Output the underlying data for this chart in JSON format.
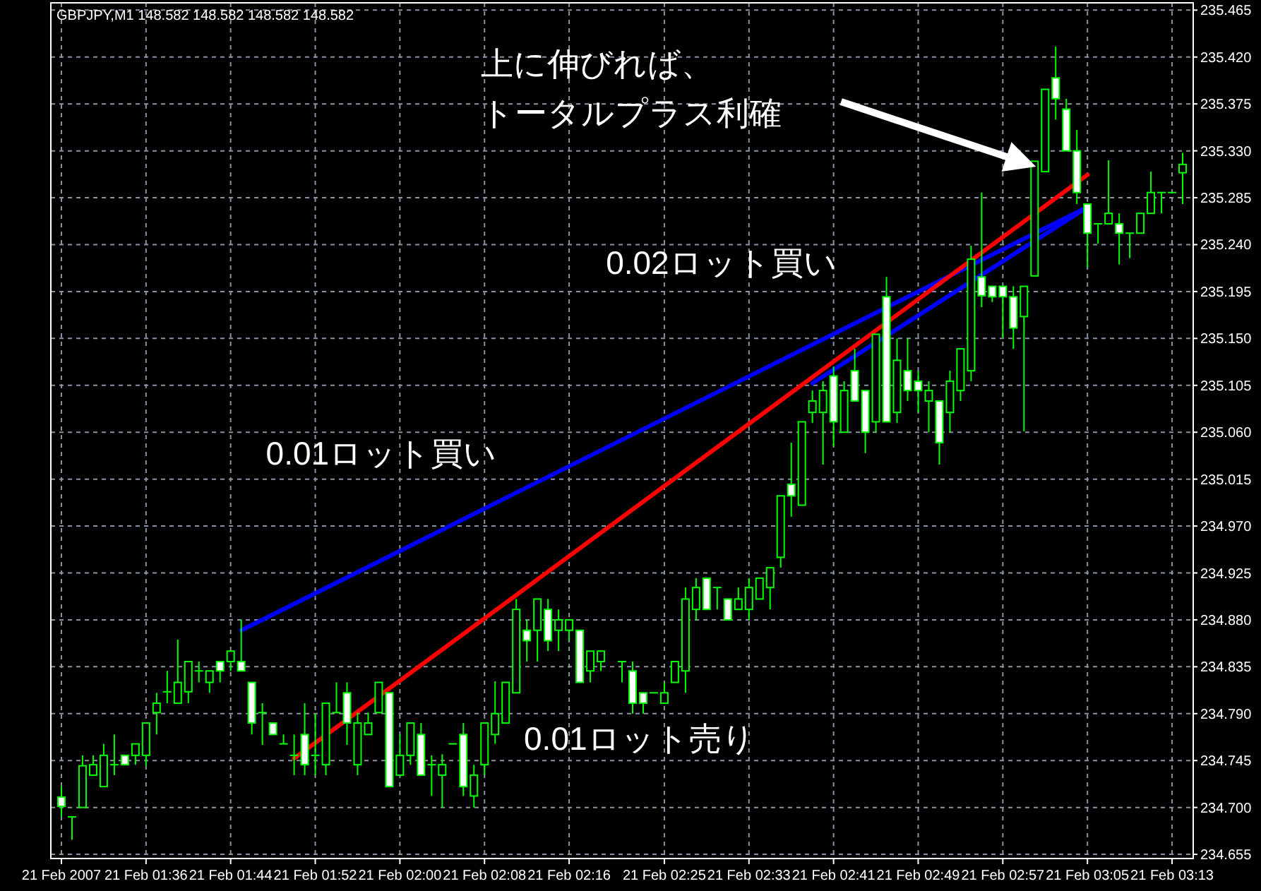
{
  "chart_data": {
    "type": "candlestick",
    "title": "GBPJPY,M1  148.582 148.582 148.582 148.582",
    "x": [
      "2007-02-21T01:28",
      "2007-02-21T01:29",
      "2007-02-21T01:30",
      "2007-02-21T01:31",
      "2007-02-21T01:32",
      "2007-02-21T01:33",
      "2007-02-21T01:34",
      "2007-02-21T01:35",
      "2007-02-21T01:36",
      "2007-02-21T01:37",
      "2007-02-21T01:38",
      "2007-02-21T01:39",
      "2007-02-21T01:40",
      "2007-02-21T01:41",
      "2007-02-21T01:42",
      "2007-02-21T01:43",
      "2007-02-21T01:44",
      "2007-02-21T01:45",
      "2007-02-21T01:46",
      "2007-02-21T01:47",
      "2007-02-21T01:48",
      "2007-02-21T01:49",
      "2007-02-21T01:50",
      "2007-02-21T01:51",
      "2007-02-21T01:52",
      "2007-02-21T01:53",
      "2007-02-21T01:54",
      "2007-02-21T01:55",
      "2007-02-21T01:56",
      "2007-02-21T01:57",
      "2007-02-21T01:58",
      "2007-02-21T01:59",
      "2007-02-21T02:00",
      "2007-02-21T02:01",
      "2007-02-21T02:02",
      "2007-02-21T02:03",
      "2007-02-21T02:04",
      "2007-02-21T02:05",
      "2007-02-21T02:06",
      "2007-02-21T02:07",
      "2007-02-21T02:08",
      "2007-02-21T02:09",
      "2007-02-21T02:10",
      "2007-02-21T02:11",
      "2007-02-21T02:12",
      "2007-02-21T02:13",
      "2007-02-21T02:14",
      "2007-02-21T02:15",
      "2007-02-21T02:16",
      "2007-02-21T02:17",
      "2007-02-21T02:18",
      "2007-02-21T02:19",
      "2007-02-21T02:21",
      "2007-02-21T02:22",
      "2007-02-21T02:23",
      "2007-02-21T02:24",
      "2007-02-21T02:25",
      "2007-02-21T02:26",
      "2007-02-21T02:27",
      "2007-02-21T02:28",
      "2007-02-21T02:29",
      "2007-02-21T02:30",
      "2007-02-21T02:31",
      "2007-02-21T02:32",
      "2007-02-21T02:33",
      "2007-02-21T02:34",
      "2007-02-21T02:35",
      "2007-02-21T02:36",
      "2007-02-21T02:37",
      "2007-02-21T02:38",
      "2007-02-21T02:39",
      "2007-02-21T02:40",
      "2007-02-21T02:41",
      "2007-02-21T02:42",
      "2007-02-21T02:43",
      "2007-02-21T02:44",
      "2007-02-21T02:45",
      "2007-02-21T02:46",
      "2007-02-21T02:47",
      "2007-02-21T02:48",
      "2007-02-21T02:49",
      "2007-02-21T02:50",
      "2007-02-21T02:51",
      "2007-02-21T02:52",
      "2007-02-21T02:53",
      "2007-02-21T02:54",
      "2007-02-21T02:55",
      "2007-02-21T02:56",
      "2007-02-21T02:57",
      "2007-02-21T02:58",
      "2007-02-21T02:59",
      "2007-02-21T03:00",
      "2007-02-21T03:01",
      "2007-02-21T03:02",
      "2007-02-21T03:03",
      "2007-02-21T03:04",
      "2007-02-21T03:05",
      "2007-02-21T03:06",
      "2007-02-21T03:07",
      "2007-02-21T03:08",
      "2007-02-21T03:09",
      "2007-02-21T03:10",
      "2007-02-21T03:11",
      "2007-02-21T03:12",
      "2007-02-21T03:13",
      "2007-02-21T03:14"
    ],
    "ohlc": [
      [
        234.71,
        234.72,
        234.691,
        234.701
      ],
      [
        234.691,
        234.691,
        234.669,
        234.691
      ],
      [
        234.7,
        234.75,
        234.7,
        234.74
      ],
      [
        234.731,
        234.75,
        234.731,
        234.741
      ],
      [
        234.72,
        234.761,
        234.72,
        234.75
      ],
      [
        234.741,
        234.77,
        234.731,
        234.741
      ],
      [
        234.75,
        234.75,
        234.741,
        234.741
      ],
      [
        234.75,
        234.761,
        234.741,
        234.761
      ],
      [
        234.75,
        234.781,
        234.74,
        234.781
      ],
      [
        234.791,
        234.81,
        234.77,
        234.8
      ],
      [
        234.811,
        234.831,
        234.8,
        234.811
      ],
      [
        234.8,
        234.861,
        234.8,
        234.82
      ],
      [
        234.811,
        234.84,
        234.8,
        234.84
      ],
      [
        234.831,
        234.84,
        234.82,
        234.831
      ],
      [
        234.82,
        234.831,
        234.81,
        234.831
      ],
      [
        234.84,
        234.84,
        234.82,
        234.831
      ],
      [
        234.84,
        234.85,
        234.831,
        234.85
      ],
      [
        234.84,
        234.88,
        234.831,
        234.831
      ],
      [
        234.82,
        234.82,
        234.77,
        234.781
      ],
      [
        234.791,
        234.8,
        234.76,
        234.791
      ],
      [
        234.781,
        234.781,
        234.77,
        234.77
      ],
      [
        234.761,
        234.77,
        234.761,
        234.761
      ],
      [
        234.75,
        234.77,
        234.731,
        234.75
      ],
      [
        234.77,
        234.8,
        234.731,
        234.741
      ],
      [
        234.75,
        234.79,
        234.731,
        234.75
      ],
      [
        234.741,
        234.8,
        234.731,
        234.8
      ],
      [
        234.791,
        234.82,
        234.791,
        234.791
      ],
      [
        234.81,
        234.82,
        234.76,
        234.781
      ],
      [
        234.741,
        234.791,
        234.731,
        234.781
      ],
      [
        234.77,
        234.791,
        234.77,
        234.781
      ],
      [
        234.791,
        234.82,
        234.791,
        234.82
      ],
      [
        234.81,
        234.81,
        234.72,
        234.72
      ],
      [
        234.731,
        234.77,
        234.731,
        234.75
      ],
      [
        234.75,
        234.781,
        234.741,
        234.781
      ],
      [
        234.77,
        234.781,
        234.731,
        234.731
      ],
      [
        234.741,
        234.75,
        234.711,
        234.741
      ],
      [
        234.731,
        234.751,
        234.7,
        234.741
      ],
      [
        234.761,
        234.761,
        234.761,
        234.761
      ],
      [
        234.77,
        234.781,
        234.711,
        234.72
      ],
      [
        234.711,
        234.741,
        234.7,
        234.731
      ],
      [
        234.741,
        234.781,
        234.731,
        234.781
      ],
      [
        234.77,
        234.821,
        234.761,
        234.79
      ],
      [
        234.781,
        234.82,
        234.781,
        234.82
      ],
      [
        234.81,
        234.9,
        234.81,
        234.89
      ],
      [
        234.87,
        234.88,
        234.84,
        234.86
      ],
      [
        234.87,
        234.9,
        234.84,
        234.9
      ],
      [
        234.89,
        234.9,
        234.85,
        234.86
      ],
      [
        234.87,
        234.89,
        234.85,
        234.88
      ],
      [
        234.87,
        234.88,
        234.86,
        234.88
      ],
      [
        234.87,
        234.87,
        234.82,
        234.82
      ],
      [
        234.831,
        234.85,
        234.82,
        234.85
      ],
      [
        234.84,
        234.85,
        234.831,
        234.85
      ],
      [
        234.84,
        234.84,
        234.82,
        234.84
      ],
      [
        234.831,
        234.84,
        234.79,
        234.8
      ],
      [
        234.81,
        234.81,
        234.79,
        234.8
      ],
      [
        234.81,
        234.81,
        234.81,
        234.81
      ],
      [
        234.8,
        234.82,
        234.8,
        234.81
      ],
      [
        234.82,
        234.84,
        234.82,
        234.84
      ],
      [
        234.831,
        234.911,
        234.81,
        234.9
      ],
      [
        234.89,
        234.92,
        234.88,
        234.911
      ],
      [
        234.92,
        234.92,
        234.89,
        234.89
      ],
      [
        234.911,
        234.911,
        234.89,
        234.911
      ],
      [
        234.9,
        234.9,
        234.88,
        234.88
      ],
      [
        234.89,
        234.911,
        234.89,
        234.9
      ],
      [
        234.89,
        234.92,
        234.88,
        234.911
      ],
      [
        234.9,
        234.92,
        234.9,
        234.92
      ],
      [
        234.911,
        234.93,
        234.89,
        234.93
      ],
      [
        234.94,
        234.999,
        234.93,
        234.999
      ],
      [
        235.01,
        235.05,
        234.979,
        234.999
      ],
      [
        234.99,
        235.07,
        234.99,
        235.07
      ],
      [
        235.079,
        235.1,
        235.069,
        235.09
      ],
      [
        235.079,
        235.109,
        235.029,
        235.1
      ],
      [
        235.114,
        235.123,
        235.047,
        235.07
      ],
      [
        235.06,
        235.109,
        235.06,
        235.1
      ],
      [
        235.119,
        235.14,
        235.09,
        235.09
      ],
      [
        235.1,
        235.1,
        235.04,
        235.06
      ],
      [
        235.07,
        235.154,
        235.06,
        235.154
      ],
      [
        235.19,
        235.209,
        235.07,
        235.07
      ],
      [
        235.079,
        235.15,
        235.069,
        235.129
      ],
      [
        235.119,
        235.15,
        235.09,
        235.1
      ],
      [
        235.109,
        235.119,
        235.079,
        235.1
      ],
      [
        235.09,
        235.109,
        235.06,
        235.1
      ],
      [
        235.09,
        235.09,
        235.029,
        235.05
      ],
      [
        235.079,
        235.119,
        235.06,
        235.109
      ],
      [
        235.1,
        235.14,
        235.09,
        235.14
      ],
      [
        235.119,
        235.239,
        235.109,
        235.226
      ],
      [
        235.209,
        235.29,
        235.18,
        235.191
      ],
      [
        235.2,
        235.2,
        235.185,
        235.19
      ],
      [
        235.2,
        235.2,
        235.151,
        235.19
      ],
      [
        235.19,
        235.2,
        235.14,
        235.16
      ],
      [
        235.171,
        235.2,
        235.061,
        235.2
      ],
      [
        235.21,
        235.32,
        235.21,
        235.32
      ],
      [
        235.31,
        235.389,
        235.31,
        235.389
      ],
      [
        235.4,
        235.43,
        235.36,
        235.38
      ],
      [
        235.37,
        235.38,
        235.33,
        235.33
      ],
      [
        235.33,
        235.35,
        235.279,
        235.29
      ],
      [
        235.279,
        235.279,
        235.218,
        235.251
      ],
      [
        235.26,
        235.26,
        235.241,
        235.26
      ],
      [
        235.26,
        235.321,
        235.26,
        235.27
      ],
      [
        235.26,
        235.27,
        235.221,
        235.251
      ],
      [
        235.251,
        235.251,
        235.227,
        235.251
      ],
      [
        235.251,
        235.27,
        235.251,
        235.27
      ],
      [
        235.27,
        235.31,
        235.27,
        235.29
      ],
      [
        235.29,
        235.29,
        235.27,
        235.29
      ],
      [
        235.29,
        235.29,
        235.29,
        235.29
      ],
      [
        235.309,
        235.328,
        235.279,
        235.317
      ]
    ],
    "series": [
      {
        "type": "line",
        "color": "#0000ff",
        "x": [
          "2007-02-21T01:45",
          "2007-02-21T03:05"
        ],
        "values": [
          234.87,
          235.276
        ]
      },
      {
        "type": "line",
        "color": "#0000ff",
        "x": [
          "2007-02-21T02:39",
          "2007-02-21T03:05"
        ],
        "values": [
          235.107,
          235.276
        ]
      },
      {
        "type": "line",
        "color": "#ff0000",
        "x": [
          "2007-02-21T01:50",
          "2007-02-21T03:05"
        ],
        "values": [
          234.747,
          235.307
        ]
      }
    ],
    "annotations": [
      "上に伸びれば、",
      "トータルプラス利確",
      "0.02ロット買い",
      "0.01ロット買い",
      "0.01ロット売り"
    ],
    "xlim": [
      "2007-02-21T01:27",
      "2007-02-21T03:15"
    ],
    "xticks": [
      {
        "value": "2007-02-21T01:28",
        "label": "21 Feb 2007"
      },
      {
        "value": "2007-02-21T01:36",
        "label": "21 Feb 01:36"
      },
      {
        "value": "2007-02-21T01:44",
        "label": "21 Feb 01:44"
      },
      {
        "value": "2007-02-21T01:52",
        "label": "21 Feb 01:52"
      },
      {
        "value": "2007-02-21T02:00",
        "label": "21 Feb 02:00"
      },
      {
        "value": "2007-02-21T02:08",
        "label": "21 Feb 02:08"
      },
      {
        "value": "2007-02-21T02:16",
        "label": "21 Feb 02:16"
      },
      {
        "value": "2007-02-21T02:25",
        "label": "21 Feb 02:25"
      },
      {
        "value": "2007-02-21T02:33",
        "label": "21 Feb 02:33"
      },
      {
        "value": "2007-02-21T02:41",
        "label": "21 Feb 02:41"
      },
      {
        "value": "2007-02-21T02:49",
        "label": "21 Feb 02:49"
      },
      {
        "value": "2007-02-21T02:57",
        "label": "21 Feb 02:57"
      },
      {
        "value": "2007-02-21T03:05",
        "label": "21 Feb 03:05"
      },
      {
        "value": "2007-02-21T03:13",
        "label": "21 Feb 03:13"
      }
    ],
    "ylim": [
      234.651,
      235.472
    ],
    "yticks": [
      234.655,
      {
        "value": 234.7,
        "label": "234.700"
      },
      234.745,
      {
        "value": 234.79,
        "label": "234.790"
      },
      234.835,
      {
        "value": 234.88,
        "label": "234.880"
      },
      234.925,
      {
        "value": 234.97,
        "label": "234.970"
      },
      235.015,
      {
        "value": 235.06,
        "label": "235.060"
      },
      235.105,
      {
        "value": 235.15,
        "label": "235.150"
      },
      235.195,
      {
        "value": 235.24,
        "label": "235.240"
      },
      235.285,
      {
        "value": 235.33,
        "label": "235.330"
      },
      235.375,
      {
        "value": 235.42,
        "label": "235.420"
      },
      235.465
    ],
    "grid": true
  }
}
